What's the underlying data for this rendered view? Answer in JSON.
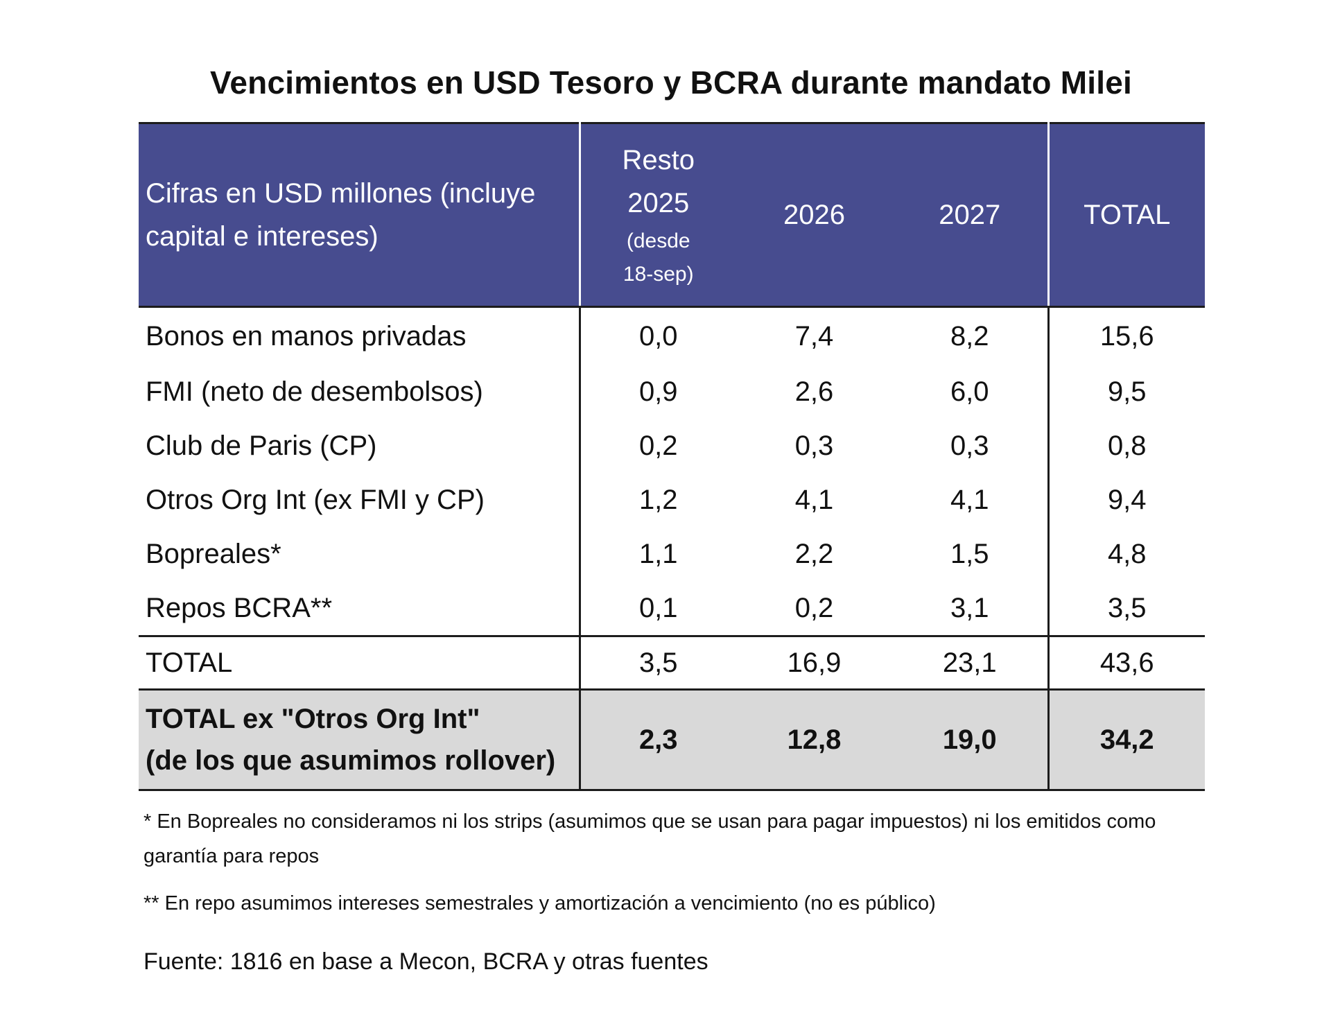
{
  "title": "Vencimientos en USD Tesoro y BCRA durante mandato Milei",
  "chart_data": {
    "type": "table",
    "title": "Vencimientos en USD Tesoro y BCRA durante mandato Milei",
    "header": {
      "label_line1": "Cifras en USD millones (incluye",
      "label_line2": "capital e intereses)",
      "col1_line1": "Resto",
      "col1_line2": "2025",
      "col1_line3": "(desde",
      "col1_line4": "18-sep)",
      "col2": "2026",
      "col3": "2027",
      "col4": "TOTAL"
    },
    "rows": [
      {
        "label": "Bonos en manos privadas",
        "v2025": "0,0",
        "v2026": "7,4",
        "v2027": "8,2",
        "total": "15,6"
      },
      {
        "label": "FMI (neto de desembolsos)",
        "v2025": "0,9",
        "v2026": "2,6",
        "v2027": "6,0",
        "total": "9,5"
      },
      {
        "label": "Club de Paris (CP)",
        "v2025": "0,2",
        "v2026": "0,3",
        "v2027": "0,3",
        "total": "0,8"
      },
      {
        "label": "Otros Org Int (ex FMI y CP)",
        "v2025": "1,2",
        "v2026": "4,1",
        "v2027": "4,1",
        "total": "9,4"
      },
      {
        "label": "Bopreales*",
        "v2025": "1,1",
        "v2026": "2,2",
        "v2027": "1,5",
        "total": "4,8"
      },
      {
        "label": "Repos BCRA**",
        "v2025": "0,1",
        "v2026": "0,2",
        "v2027": "3,1",
        "total": "3,5"
      }
    ],
    "total_row": {
      "label": "TOTAL",
      "v2025": "3,5",
      "v2026": "16,9",
      "v2027": "23,1",
      "total": "43,6"
    },
    "ex_total_row": {
      "label_line1": "TOTAL ex \"Otros Org Int\"",
      "label_line2": "(de los que asumimos rollover)",
      "v2025": "2,3",
      "v2026": "12,8",
      "v2027": "19,0",
      "total": "34,2"
    }
  },
  "notes": {
    "note1": "* En Bopreales no consideramos ni los strips (asumimos que se usan para pagar impuestos) ni los emitidos como garantía para repos",
    "note2": "** En repo asumimos intereses semestrales y amortización a vencimiento (no es público)"
  },
  "source": "Fuente: 1816 en base a Mecon, BCRA y otras fuentes",
  "colors": {
    "header_bg": "#474c8f",
    "highlight_row_bg": "#d9d9d9",
    "border": "#1c1c1c"
  }
}
